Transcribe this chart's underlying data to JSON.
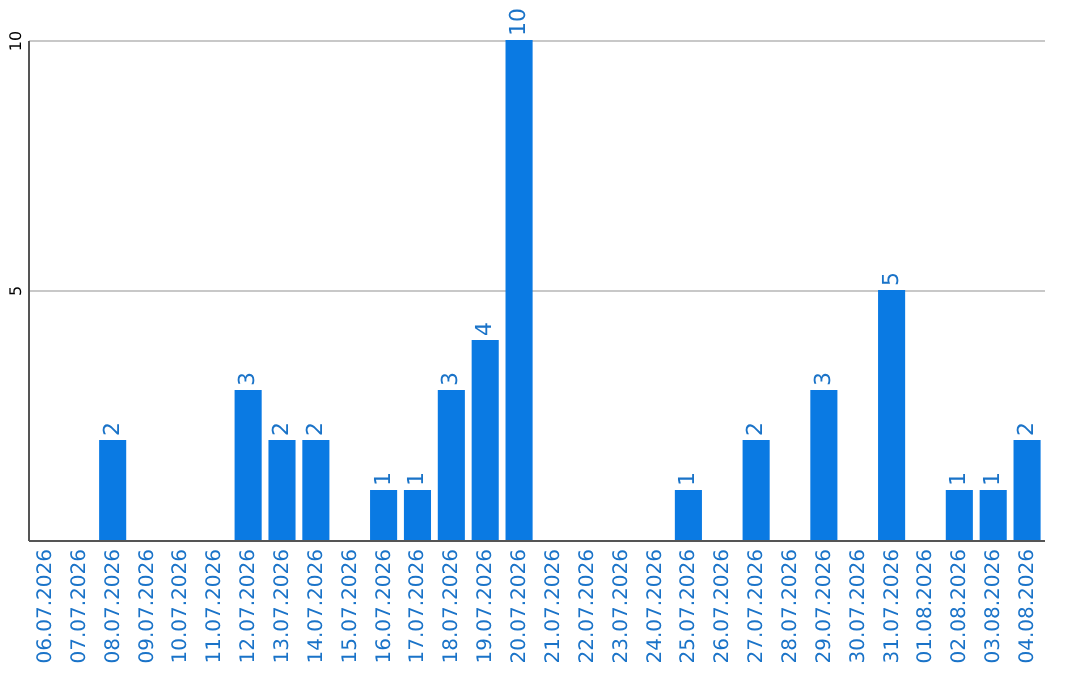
{
  "chart_data": {
    "type": "bar",
    "categories": [
      "06.07.2026",
      "07.07.2026",
      "08.07.2026",
      "09.07.2026",
      "10.07.2026",
      "11.07.2026",
      "12.07.2026",
      "13.07.2026",
      "14.07.2026",
      "15.07.2026",
      "16.07.2026",
      "17.07.2026",
      "18.07.2026",
      "19.07.2026",
      "20.07.2026",
      "21.07.2026",
      "22.07.2026",
      "23.07.2026",
      "24.07.2026",
      "25.07.2026",
      "26.07.2026",
      "27.07.2026",
      "28.07.2026",
      "29.07.2026",
      "30.07.2026",
      "31.07.2026",
      "01.08.2026",
      "02.08.2026",
      "03.08.2026",
      "04.08.2026"
    ],
    "values": [
      0,
      0,
      2,
      0,
      0,
      0,
      3,
      2,
      2,
      0,
      1,
      1,
      3,
      4,
      10,
      0,
      0,
      0,
      0,
      1,
      0,
      2,
      0,
      3,
      0,
      5,
      0,
      1,
      1,
      2
    ],
    "value_labels": [
      null,
      null,
      "2",
      null,
      null,
      null,
      "3",
      "2",
      "2",
      null,
      "1",
      "1",
      "3",
      "4",
      "10",
      null,
      null,
      null,
      null,
      "1",
      null,
      "2",
      null,
      "3",
      null,
      "5",
      null,
      "1",
      "1",
      "2"
    ],
    "color": "#0a7ae3",
    "ylim": [
      0,
      10
    ],
    "yticks": [
      5,
      10
    ],
    "grid": "y"
  }
}
